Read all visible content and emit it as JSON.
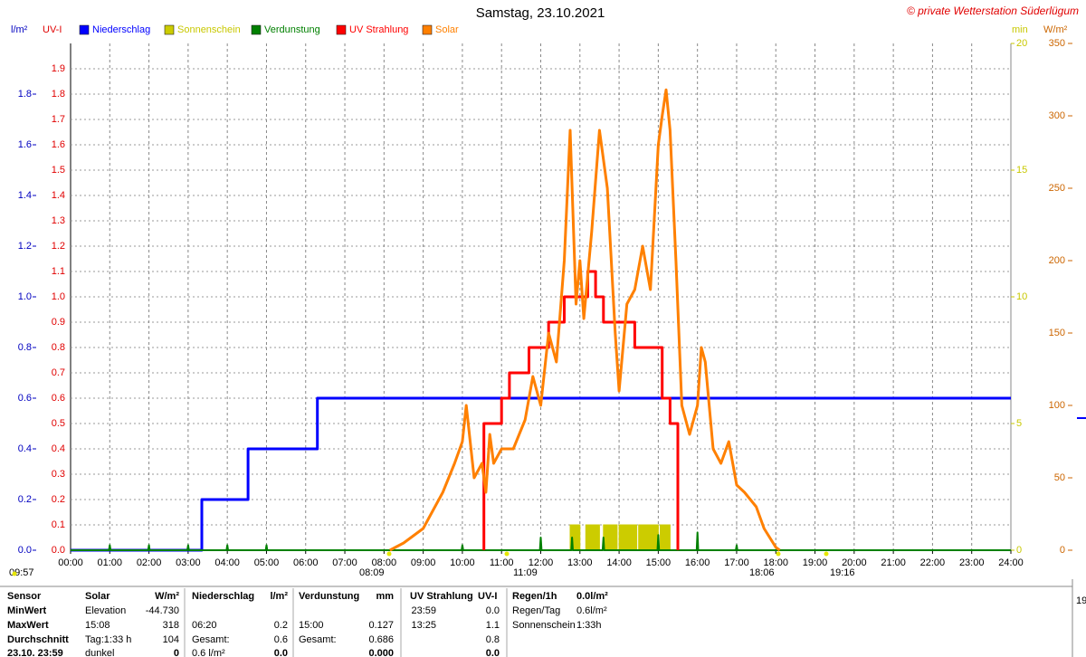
{
  "chart_data": {
    "type": "line",
    "title": "Samstag, 23.10.2021",
    "copyright": "© private Wetterstation Süderlügum",
    "y_label": "l/m²",
    "uv_label": "UV-I",
    "y2_label": "min",
    "y3_label": "W/m²",
    "xlim": [
      0,
      24
    ],
    "xticks": [
      {
        "value": 0,
        "label": "00:00"
      },
      {
        "value": 1,
        "label": "01:00"
      },
      {
        "value": 2,
        "label": "02:00"
      },
      {
        "value": 3,
        "label": "03:00"
      },
      {
        "value": 4,
        "label": "04:00"
      },
      {
        "value": 5,
        "label": "05:00"
      },
      {
        "value": 6,
        "label": "06:00"
      },
      {
        "value": 7,
        "label": "07:00"
      },
      {
        "value": 8,
        "label": "08:00"
      },
      {
        "value": 9,
        "label": "09:00"
      },
      {
        "value": 10,
        "label": "10:00"
      },
      {
        "value": 11,
        "label": "11:00"
      },
      {
        "value": 12,
        "label": "12:00"
      },
      {
        "value": 13,
        "label": "13:00"
      },
      {
        "value": 14,
        "label": "14:00"
      },
      {
        "value": 15,
        "label": "15:00"
      },
      {
        "value": 16,
        "label": "16:00"
      },
      {
        "value": 17,
        "label": "17:00"
      },
      {
        "value": 18,
        "label": "18:00"
      },
      {
        "value": 19,
        "label": "19:00"
      },
      {
        "value": 20,
        "label": "20:00"
      },
      {
        "value": 21,
        "label": "21:00"
      },
      {
        "value": 22,
        "label": "22:00"
      },
      {
        "value": 23,
        "label": "23:00"
      },
      {
        "value": 24,
        "label": "24:00"
      }
    ],
    "ylim": [
      0,
      2
    ],
    "yticks": [
      {
        "value": 0,
        "label": "0.0"
      },
      0.2,
      0.4,
      0.6,
      0.8,
      {
        "value": 1,
        "label": "1.0"
      },
      1.2,
      1.4,
      1.6,
      1.8
    ],
    "uvticks": [
      {
        "value": 0,
        "label": "0.0"
      },
      0.1,
      0.2,
      0.3,
      0.4,
      0.5,
      0.6,
      0.7,
      0.8,
      0.9,
      {
        "value": 1,
        "label": "1.0"
      },
      1.1,
      1.2,
      1.3,
      1.4,
      1.5,
      1.6,
      1.7,
      1.8,
      1.9
    ],
    "y2lim": [
      0,
      20
    ],
    "y2ticks": [
      0,
      5,
      10,
      15,
      20
    ],
    "y3lim": [
      0,
      350
    ],
    "y3ticks": [
      0,
      50,
      100,
      150,
      200,
      250,
      300,
      350
    ],
    "grid": true,
    "series": [
      {
        "name": "Niederschlag",
        "color": "#0000ff",
        "axis": "y",
        "type": "line",
        "x": [
          0,
          3.35,
          3.35,
          4.53,
          4.53,
          6.3,
          6.3,
          24
        ],
        "values": [
          0,
          0,
          0.2,
          0.2,
          0.4,
          0.4,
          0.6,
          0.6
        ]
      },
      {
        "name": "Sonnenschein",
        "color": "#cccc00",
        "axis": "y2",
        "type": "area",
        "x": [
          12.75,
          12.75,
          13.0,
          13.0,
          13.15,
          13.15,
          13.5,
          13.5,
          13.6,
          13.6,
          13.95,
          13.95,
          14.0,
          14.0,
          14.45,
          14.45,
          14.5,
          14.5,
          15.0,
          15.0,
          15.05,
          15.05,
          15.3,
          15.3
        ],
        "values": [
          0,
          1,
          1,
          0,
          0,
          1,
          1,
          0,
          0,
          1,
          1,
          0,
          0,
          1,
          1,
          0,
          0,
          1,
          1,
          0,
          0,
          1,
          1,
          0
        ]
      },
      {
        "name": "Verdunstung",
        "color": "#008000",
        "axis": "y",
        "type": "line",
        "x": [
          0,
          0.98,
          1,
          1.02,
          1.98,
          2,
          2.02,
          2.98,
          3,
          3.02,
          3.98,
          4,
          4.02,
          4.98,
          5,
          5.02,
          9.98,
          10,
          10.02,
          11.98,
          12,
          12.02,
          12.78,
          12.8,
          12.82,
          13.58,
          13.6,
          13.62,
          14.98,
          15,
          15.02,
          15.98,
          16,
          16.02,
          16.98,
          17,
          17.02,
          24
        ],
        "values": [
          0,
          0,
          0.02,
          0,
          0,
          0.02,
          0,
          0,
          0.02,
          0,
          0,
          0.02,
          0,
          0,
          0.02,
          0,
          0,
          0.02,
          0,
          0,
          0.05,
          0,
          0,
          0.05,
          0,
          0,
          0.05,
          0,
          0,
          0.06,
          0,
          0,
          0.07,
          0,
          0,
          0.02,
          0,
          0
        ]
      },
      {
        "name": "UV Strahlung",
        "color": "#ff0000",
        "axis": "y",
        "type": "line",
        "x": [
          10.55,
          10.55,
          11.0,
          11.0,
          11.2,
          11.2,
          11.7,
          11.7,
          12.2,
          12.2,
          12.6,
          12.6,
          13.2,
          13.2,
          13.4,
          13.4,
          13.6,
          13.6,
          14.4,
          14.4,
          15.1,
          15.1,
          15.3,
          15.3,
          15.5,
          15.5
        ],
        "values": [
          0,
          0.5,
          0.5,
          0.6,
          0.6,
          0.7,
          0.7,
          0.8,
          0.8,
          0.9,
          0.9,
          1.0,
          1.0,
          1.1,
          1.1,
          1.0,
          1.0,
          0.9,
          0.9,
          0.8,
          0.8,
          0.6,
          0.6,
          0.5,
          0.5,
          0
        ]
      },
      {
        "name": "Solar",
        "color": "#ff8000",
        "axis": "y3",
        "type": "line",
        "x": [
          8.15,
          8.5,
          9.0,
          9.5,
          9.8,
          10.0,
          10.1,
          10.3,
          10.5,
          10.6,
          10.7,
          10.8,
          11.0,
          11.3,
          11.6,
          11.8,
          12.0,
          12.2,
          12.4,
          12.6,
          12.75,
          12.9,
          13.0,
          13.1,
          13.3,
          13.5,
          13.7,
          13.9,
          14.0,
          14.2,
          14.4,
          14.6,
          14.8,
          15.0,
          15.1,
          15.2,
          15.3,
          15.45,
          15.6,
          15.8,
          16.0,
          16.1,
          16.2,
          16.4,
          16.6,
          16.8,
          17.0,
          17.2,
          17.5,
          17.7,
          18.0,
          18.1
        ],
        "values": [
          0,
          5,
          15,
          40,
          60,
          75,
          100,
          50,
          60,
          40,
          80,
          60,
          70,
          70,
          90,
          120,
          100,
          150,
          130,
          200,
          290,
          170,
          200,
          160,
          220,
          290,
          250,
          150,
          110,
          170,
          180,
          210,
          180,
          280,
          300,
          318,
          290,
          200,
          100,
          80,
          100,
          140,
          130,
          70,
          60,
          75,
          45,
          40,
          30,
          15,
          2,
          0
        ]
      }
    ],
    "markers": [
      "09:57",
      "08:09",
      "11:09",
      "18:06",
      "19:16"
    ],
    "edge_text": "19"
  },
  "table": {
    "rows": [
      [
        "Sensor",
        "Solar",
        "W/m²",
        "Niederschlag",
        "l/m²",
        "Verdunstung",
        "mm",
        "UV Strahlung",
        "UV-I",
        "Regen/1h",
        "0.0l/m²"
      ],
      [
        "MinWert",
        "Elevation",
        "-44.730",
        null,
        null,
        null,
        null,
        "23:59",
        "0.0",
        "Regen/Tag",
        "0.6l/m²"
      ],
      [
        "MaxWert",
        "15:08",
        "318",
        "06:20",
        "0.2",
        "15:00",
        "0.127",
        "13:25",
        "1.1",
        "Sonnenschein",
        "1:33h"
      ],
      [
        "Durchschnitt",
        "Tag:1:33 h",
        "104",
        "Gesamt:",
        "0.6",
        "Gesamt:",
        "0.686",
        null,
        "0.8",
        null,
        null
      ],
      [
        "23.10. 23:59",
        "dunkel",
        "0",
        "0.6 l/m²",
        "0.0",
        null,
        "0.000",
        null,
        "0.0",
        null,
        null
      ]
    ]
  }
}
